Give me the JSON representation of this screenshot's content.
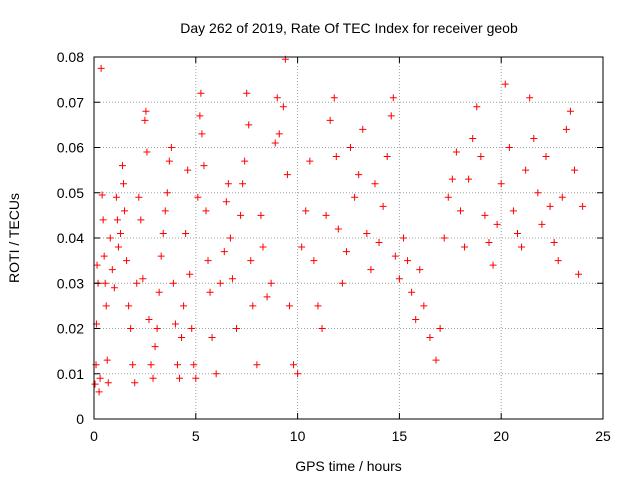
{
  "chart_data": {
    "type": "scatter",
    "title": "Day 262 of 2019, Rate Of TEC Index for receiver geob",
    "xlabel": "GPS time / hours",
    "ylabel": "ROTI / TECUs",
    "xlim": [
      0,
      25
    ],
    "ylim": [
      0,
      0.08
    ],
    "x_ticks": [
      0,
      5,
      10,
      15,
      20,
      25
    ],
    "y_ticks": [
      0,
      0.01,
      0.02,
      0.03,
      0.04,
      0.05,
      0.06,
      0.07,
      0.08
    ],
    "x_tick_labels": [
      "0",
      "5",
      "10",
      "15",
      "20",
      "25"
    ],
    "y_tick_labels": [
      "0",
      "0.01",
      "0.02",
      "0.03",
      "0.04",
      "0.05",
      "0.06",
      "0.07",
      "0.08"
    ],
    "grid": true,
    "marker": "+",
    "color": "#ff0000",
    "series": [
      {
        "points": [
          [
            0.05,
            0.0077
          ],
          [
            0.1,
            0.012
          ],
          [
            0.12,
            0.021
          ],
          [
            0.15,
            0.034
          ],
          [
            0.2,
            0.03
          ],
          [
            0.25,
            0.006
          ],
          [
            0.3,
            0.009
          ],
          [
            0.35,
            0.0775
          ],
          [
            0.4,
            0.0495
          ],
          [
            0.45,
            0.044
          ],
          [
            0.5,
            0.036
          ],
          [
            0.55,
            0.03
          ],
          [
            0.6,
            0.025
          ],
          [
            0.65,
            0.013
          ],
          [
            0.7,
            0.008
          ],
          [
            0.8,
            0.04
          ],
          [
            0.9,
            0.033
          ],
          [
            1.0,
            0.029
          ],
          [
            1.1,
            0.049
          ],
          [
            1.15,
            0.044
          ],
          [
            1.2,
            0.038
          ],
          [
            1.3,
            0.041
          ],
          [
            1.4,
            0.056
          ],
          [
            1.45,
            0.052
          ],
          [
            1.5,
            0.046
          ],
          [
            1.6,
            0.035
          ],
          [
            1.7,
            0.025
          ],
          [
            1.8,
            0.02
          ],
          [
            1.9,
            0.012
          ],
          [
            2.0,
            0.008
          ],
          [
            2.1,
            0.03
          ],
          [
            2.2,
            0.049
          ],
          [
            2.3,
            0.044
          ],
          [
            2.4,
            0.031
          ],
          [
            2.5,
            0.066
          ],
          [
            2.55,
            0.068
          ],
          [
            2.6,
            0.059
          ],
          [
            2.7,
            0.022
          ],
          [
            2.8,
            0.012
          ],
          [
            2.9,
            0.009
          ],
          [
            3.0,
            0.016
          ],
          [
            3.1,
            0.02
          ],
          [
            3.2,
            0.028
          ],
          [
            3.3,
            0.036
          ],
          [
            3.4,
            0.041
          ],
          [
            3.5,
            0.046
          ],
          [
            3.6,
            0.05
          ],
          [
            3.7,
            0.057
          ],
          [
            3.8,
            0.06
          ],
          [
            3.9,
            0.03
          ],
          [
            4.0,
            0.021
          ],
          [
            4.1,
            0.012
          ],
          [
            4.2,
            0.009
          ],
          [
            4.3,
            0.018
          ],
          [
            4.4,
            0.025
          ],
          [
            4.5,
            0.041
          ],
          [
            4.6,
            0.055
          ],
          [
            4.7,
            0.032
          ],
          [
            4.8,
            0.02
          ],
          [
            4.9,
            0.012
          ],
          [
            5.0,
            0.009
          ],
          [
            5.1,
            0.049
          ],
          [
            5.2,
            0.067
          ],
          [
            5.25,
            0.072
          ],
          [
            5.3,
            0.063
          ],
          [
            5.4,
            0.056
          ],
          [
            5.5,
            0.046
          ],
          [
            5.6,
            0.035
          ],
          [
            5.7,
            0.028
          ],
          [
            5.8,
            0.018
          ],
          [
            6.0,
            0.01
          ],
          [
            6.2,
            0.03
          ],
          [
            6.4,
            0.037
          ],
          [
            6.5,
            0.048
          ],
          [
            6.6,
            0.052
          ],
          [
            6.7,
            0.04
          ],
          [
            6.8,
            0.031
          ],
          [
            7.0,
            0.02
          ],
          [
            7.2,
            0.045
          ],
          [
            7.3,
            0.052
          ],
          [
            7.4,
            0.057
          ],
          [
            7.5,
            0.072
          ],
          [
            7.6,
            0.065
          ],
          [
            7.7,
            0.035
          ],
          [
            7.8,
            0.025
          ],
          [
            8.0,
            0.012
          ],
          [
            8.2,
            0.045
          ],
          [
            8.3,
            0.038
          ],
          [
            8.5,
            0.027
          ],
          [
            8.7,
            0.03
          ],
          [
            8.9,
            0.061
          ],
          [
            9.0,
            0.071
          ],
          [
            9.1,
            0.063
          ],
          [
            9.3,
            0.069
          ],
          [
            9.4,
            0.0795
          ],
          [
            9.5,
            0.054
          ],
          [
            9.6,
            0.025
          ],
          [
            9.8,
            0.012
          ],
          [
            10.0,
            0.01
          ],
          [
            10.2,
            0.038
          ],
          [
            10.4,
            0.046
          ],
          [
            10.6,
            0.057
          ],
          [
            10.8,
            0.035
          ],
          [
            11.0,
            0.025
          ],
          [
            11.2,
            0.02
          ],
          [
            11.4,
            0.045
          ],
          [
            11.6,
            0.066
          ],
          [
            11.8,
            0.071
          ],
          [
            11.9,
            0.058
          ],
          [
            12.0,
            0.042
          ],
          [
            12.2,
            0.03
          ],
          [
            12.4,
            0.037
          ],
          [
            12.6,
            0.06
          ],
          [
            12.8,
            0.049
          ],
          [
            13.0,
            0.054
          ],
          [
            13.2,
            0.064
          ],
          [
            13.4,
            0.041
          ],
          [
            13.6,
            0.033
          ],
          [
            13.8,
            0.052
          ],
          [
            14.0,
            0.039
          ],
          [
            14.2,
            0.047
          ],
          [
            14.4,
            0.058
          ],
          [
            14.6,
            0.067
          ],
          [
            14.7,
            0.071
          ],
          [
            14.8,
            0.036
          ],
          [
            15.0,
            0.031
          ],
          [
            15.2,
            0.04
          ],
          [
            15.4,
            0.035
          ],
          [
            15.6,
            0.028
          ],
          [
            15.8,
            0.022
          ],
          [
            16.0,
            0.033
          ],
          [
            16.2,
            0.025
          ],
          [
            16.5,
            0.018
          ],
          [
            16.8,
            0.013
          ],
          [
            17.0,
            0.02
          ],
          [
            17.2,
            0.04
          ],
          [
            17.4,
            0.049
          ],
          [
            17.6,
            0.053
          ],
          [
            17.8,
            0.059
          ],
          [
            18.0,
            0.046
          ],
          [
            18.2,
            0.038
          ],
          [
            18.4,
            0.053
          ],
          [
            18.6,
            0.062
          ],
          [
            18.8,
            0.069
          ],
          [
            19.0,
            0.058
          ],
          [
            19.2,
            0.045
          ],
          [
            19.4,
            0.039
          ],
          [
            19.6,
            0.034
          ],
          [
            19.8,
            0.043
          ],
          [
            20.0,
            0.052
          ],
          [
            20.2,
            0.074
          ],
          [
            20.4,
            0.06
          ],
          [
            20.6,
            0.046
          ],
          [
            20.8,
            0.041
          ],
          [
            21.0,
            0.038
          ],
          [
            21.2,
            0.055
          ],
          [
            21.4,
            0.071
          ],
          [
            21.6,
            0.062
          ],
          [
            21.8,
            0.05
          ],
          [
            22.0,
            0.043
          ],
          [
            22.2,
            0.058
          ],
          [
            22.4,
            0.047
          ],
          [
            22.6,
            0.039
          ],
          [
            22.8,
            0.035
          ],
          [
            23.0,
            0.049
          ],
          [
            23.2,
            0.064
          ],
          [
            23.4,
            0.068
          ],
          [
            23.6,
            0.055
          ],
          [
            23.8,
            0.032
          ],
          [
            24.0,
            0.047
          ]
        ]
      }
    ]
  }
}
